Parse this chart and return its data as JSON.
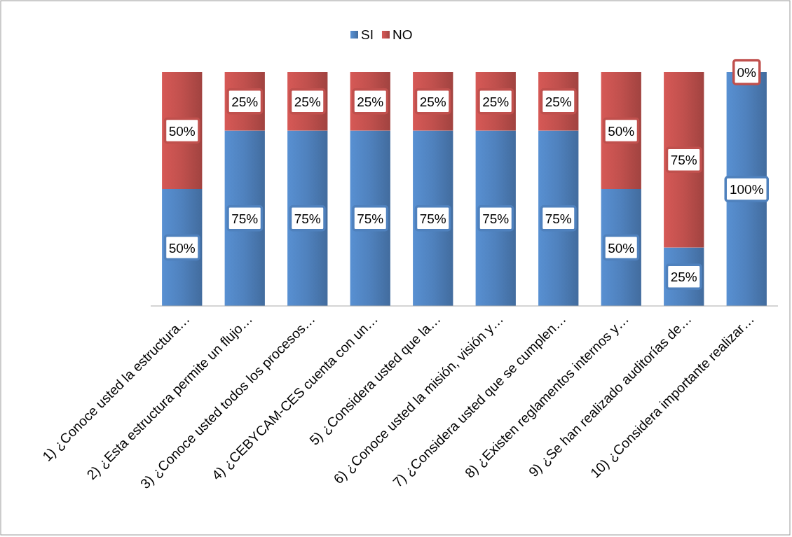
{
  "chart_data": {
    "type": "bar",
    "stacked": true,
    "legend": "top",
    "categories": [
      "1) ¿Conoce usted la estructura…",
      "2) ¿Esta estructura permite un flujo…",
      "3) ¿Conoce usted todos los procesos…",
      "4) ¿CEBYCAM-CES cuenta con un…",
      "5) ¿Considera usted que la…",
      "6) ¿Conoce usted la misión, visión y…",
      "7) ¿Considera usted que se cumplen…",
      "8) ¿Existen reglamentos internos y…",
      "9) ¿Se han realizado auditorías de…",
      "10) ¿Considera importante realizar…"
    ],
    "series": [
      {
        "name": "SI",
        "color": "#4f81bd",
        "values": [
          50,
          75,
          75,
          75,
          75,
          75,
          75,
          50,
          25,
          100
        ],
        "value_labels": [
          "50%",
          "75%",
          "75%",
          "75%",
          "75%",
          "75%",
          "75%",
          "50%",
          "25%",
          "100%"
        ]
      },
      {
        "name": "NO",
        "color": "#c0504d",
        "values": [
          50,
          25,
          25,
          25,
          25,
          25,
          25,
          50,
          75,
          0
        ],
        "value_labels": [
          "50%",
          "25%",
          "25%",
          "25%",
          "25%",
          "25%",
          "25%",
          "50%",
          "75%",
          "0%"
        ]
      }
    ]
  }
}
